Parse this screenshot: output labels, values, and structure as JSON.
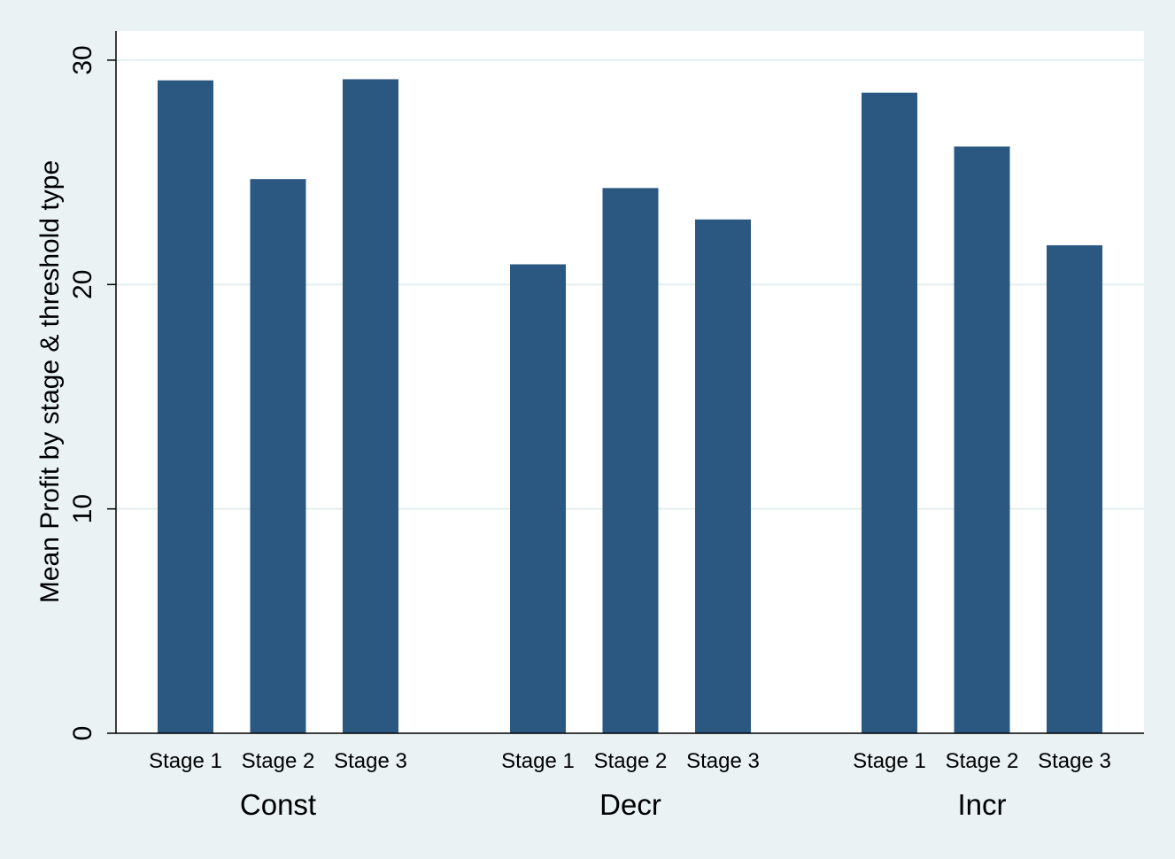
{
  "colors": {
    "background": "#eaf2f3",
    "plot_area": "#ffffff",
    "bar": "#2a5880",
    "gridline": "#e4eef0",
    "axis": "#000000"
  },
  "chart_data": {
    "type": "bar",
    "title": "",
    "xlabel": "",
    "ylabel": "Mean Profit by stage & threshold type",
    "ylim": [
      0,
      31.3
    ],
    "yticks": [
      0,
      10,
      20,
      30
    ],
    "grid": true,
    "legend": "none",
    "groups": [
      {
        "name": "Const",
        "categories": [
          "Stage 1",
          "Stage 2",
          "Stage 3"
        ],
        "values": [
          29.1,
          24.7,
          29.15
        ]
      },
      {
        "name": "Decr",
        "categories": [
          "Stage 1",
          "Stage 2",
          "Stage 3"
        ],
        "values": [
          20.9,
          24.3,
          22.9
        ]
      },
      {
        "name": "Incr",
        "categories": [
          "Stage 1",
          "Stage 2",
          "Stage 3"
        ],
        "values": [
          28.55,
          26.15,
          21.75
        ]
      }
    ]
  }
}
